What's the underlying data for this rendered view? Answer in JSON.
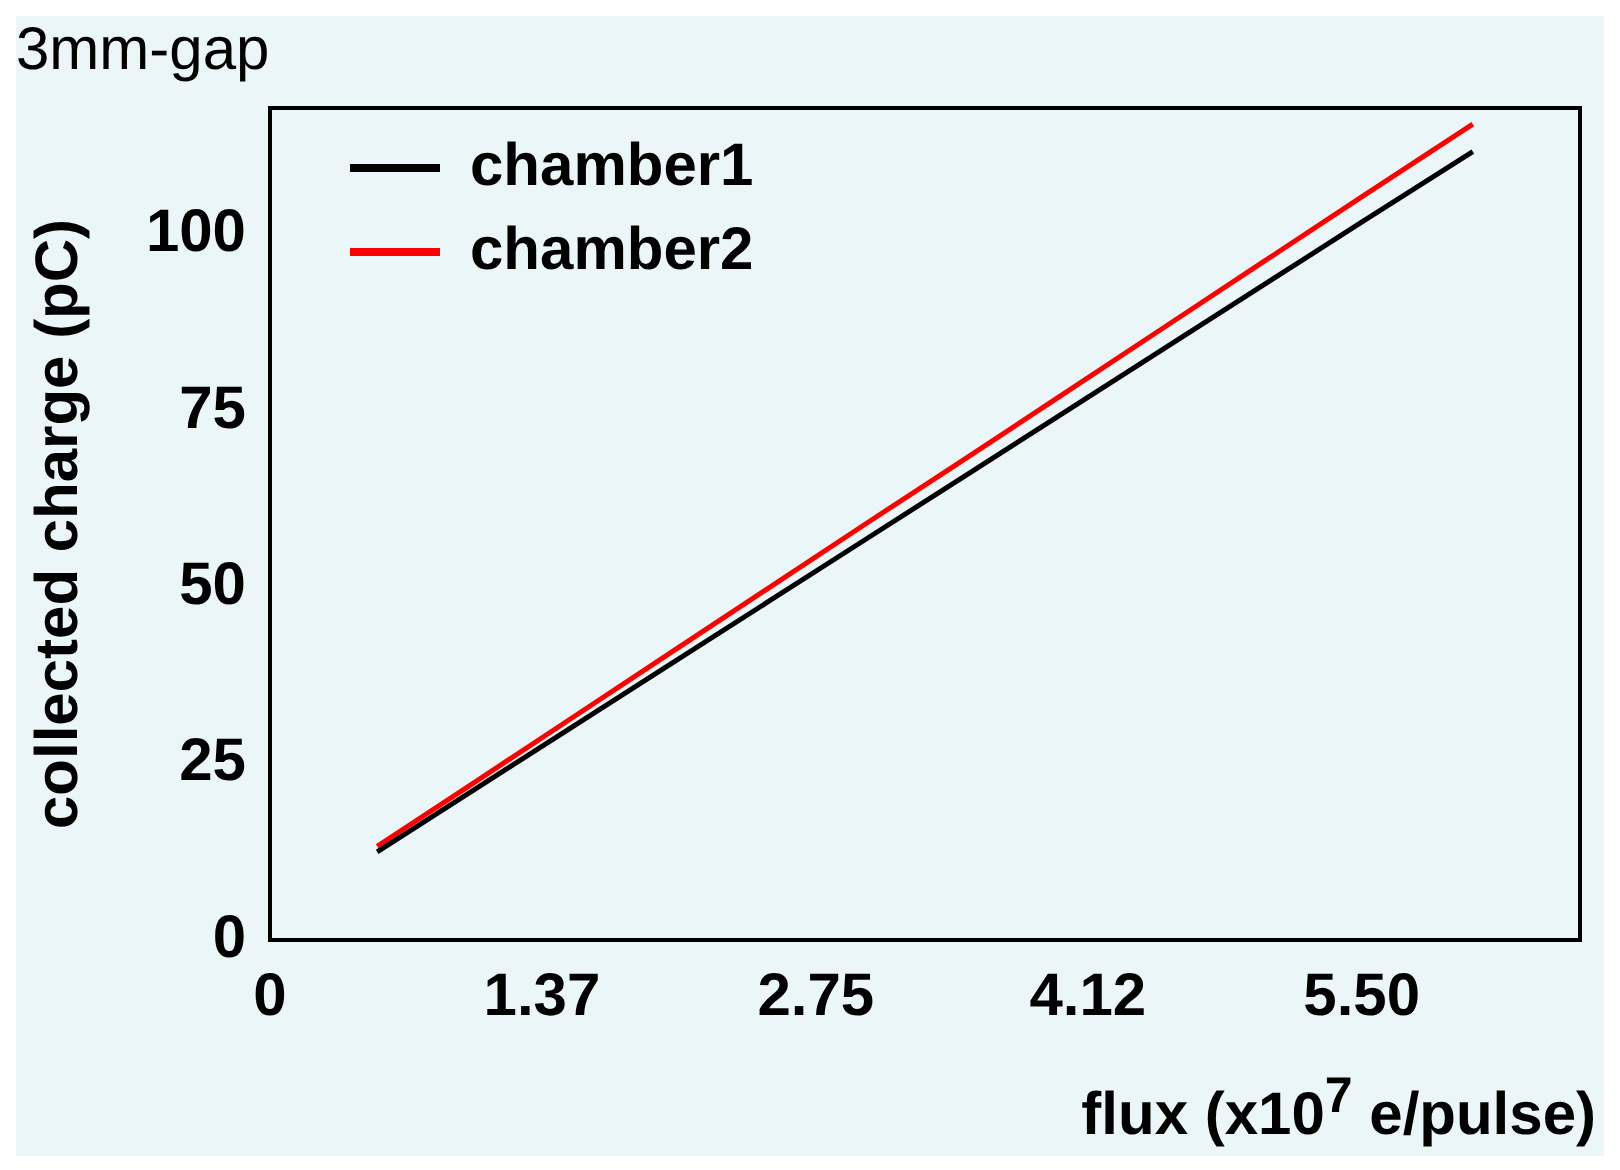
{
  "chart_data": {
    "type": "line",
    "title": "3mm-gap",
    "xlabel": "flux (x10$^{7}$ e/pulse)",
    "ylabel": "collected charge (pC)",
    "xlim": [
      0,
      6.6
    ],
    "xticks": [
      0,
      1.37,
      2.75,
      4.12,
      {
        "value": 5.5,
        "label": "5.50"
      }
    ],
    "ylim": [
      0,
      118
    ],
    "yticks": [
      0,
      25,
      50,
      75,
      100
    ],
    "grid": false,
    "legend": "top left",
    "marker": "none",
    "line_style": "solid",
    "series": [
      {
        "name": "chamber1",
        "color": "#000000",
        "x": [
          0.54,
          1,
          1.5,
          2,
          2.5,
          3,
          3.5,
          4,
          4.5,
          5,
          5.5,
          6.06
        ],
        "values": [
          12.5,
          20.8,
          29.8,
          38.8,
          47.8,
          56.8,
          65.8,
          74.8,
          83.8,
          92.8,
          101.8,
          111.8
        ]
      },
      {
        "name": "chamber2",
        "color": "#ff0000",
        "x": [
          0.54,
          1,
          1.5,
          2,
          2.5,
          3,
          3.5,
          4,
          4.5,
          5,
          5.5,
          6.06
        ],
        "values": [
          13.3,
          21.8,
          31.1,
          40.4,
          49.7,
          59,
          68.2,
          77.5,
          86.8,
          96.1,
          105.4,
          115.7
        ]
      }
    ]
  }
}
